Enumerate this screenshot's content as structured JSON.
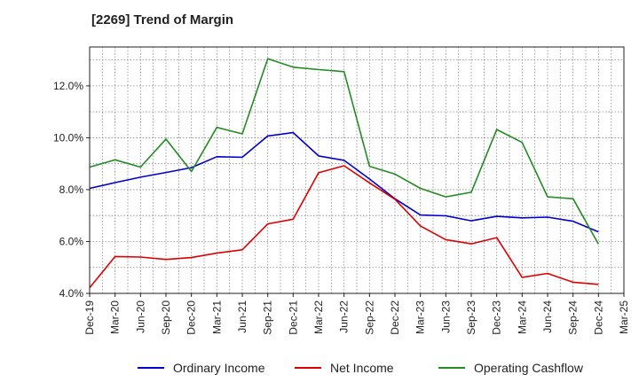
{
  "chart_data": {
    "type": "line",
    "title": "[2269]  Trend of Margin",
    "xlabel": "",
    "ylabel": "",
    "x": [
      "Dec-19",
      "Mar-20",
      "Jun-20",
      "Sep-20",
      "Dec-20",
      "Mar-21",
      "Jun-21",
      "Sep-21",
      "Dec-21",
      "Mar-22",
      "Jun-22",
      "Sep-22",
      "Dec-22",
      "Mar-23",
      "Jun-23",
      "Sep-23",
      "Dec-23",
      "Mar-24",
      "Jun-24",
      "Sep-24",
      "Dec-24"
    ],
    "x_ticks": [
      "Dec-19",
      "Mar-20",
      "Jun-20",
      "Sep-20",
      "Dec-20",
      "Mar-21",
      "Jun-21",
      "Sep-21",
      "Dec-21",
      "Mar-22",
      "Jun-22",
      "Sep-22",
      "Dec-22",
      "Mar-23",
      "Jun-23",
      "Sep-23",
      "Dec-23",
      "Mar-24",
      "Jun-24",
      "Sep-24",
      "Dec-24",
      "Mar-25"
    ],
    "ylim": [
      4.0,
      13.5
    ],
    "y_ticks": [
      4.0,
      6.0,
      8.0,
      10.0,
      12.0
    ],
    "y_tick_labels": [
      "4.0%",
      "6.0%",
      "8.0%",
      "10.0%",
      "12.0%"
    ],
    "grid": true,
    "legend_position": "bottom",
    "series": [
      {
        "name": "Ordinary Income",
        "color": "#0000cc",
        "values": [
          8.05,
          8.27,
          8.48,
          8.66,
          8.85,
          9.27,
          9.25,
          10.07,
          10.2,
          9.3,
          9.13,
          8.41,
          7.65,
          7.02,
          6.99,
          6.8,
          6.97,
          6.91,
          6.94,
          6.78,
          6.37
        ]
      },
      {
        "name": "Net Income",
        "color": "#dd0000",
        "values": [
          4.22,
          5.42,
          5.4,
          5.31,
          5.38,
          5.55,
          5.68,
          6.68,
          6.86,
          8.65,
          8.92,
          8.26,
          7.63,
          6.6,
          6.07,
          5.91,
          6.15,
          4.62,
          4.77,
          4.43,
          4.35
        ]
      },
      {
        "name": "Operating Cashflow",
        "color": "#228b22",
        "values": [
          8.87,
          9.15,
          8.87,
          9.95,
          8.7,
          10.4,
          10.15,
          13.05,
          12.72,
          12.63,
          12.55,
          8.9,
          8.6,
          8.05,
          7.72,
          7.9,
          10.32,
          9.82,
          7.72,
          7.65,
          5.9
        ]
      }
    ]
  }
}
